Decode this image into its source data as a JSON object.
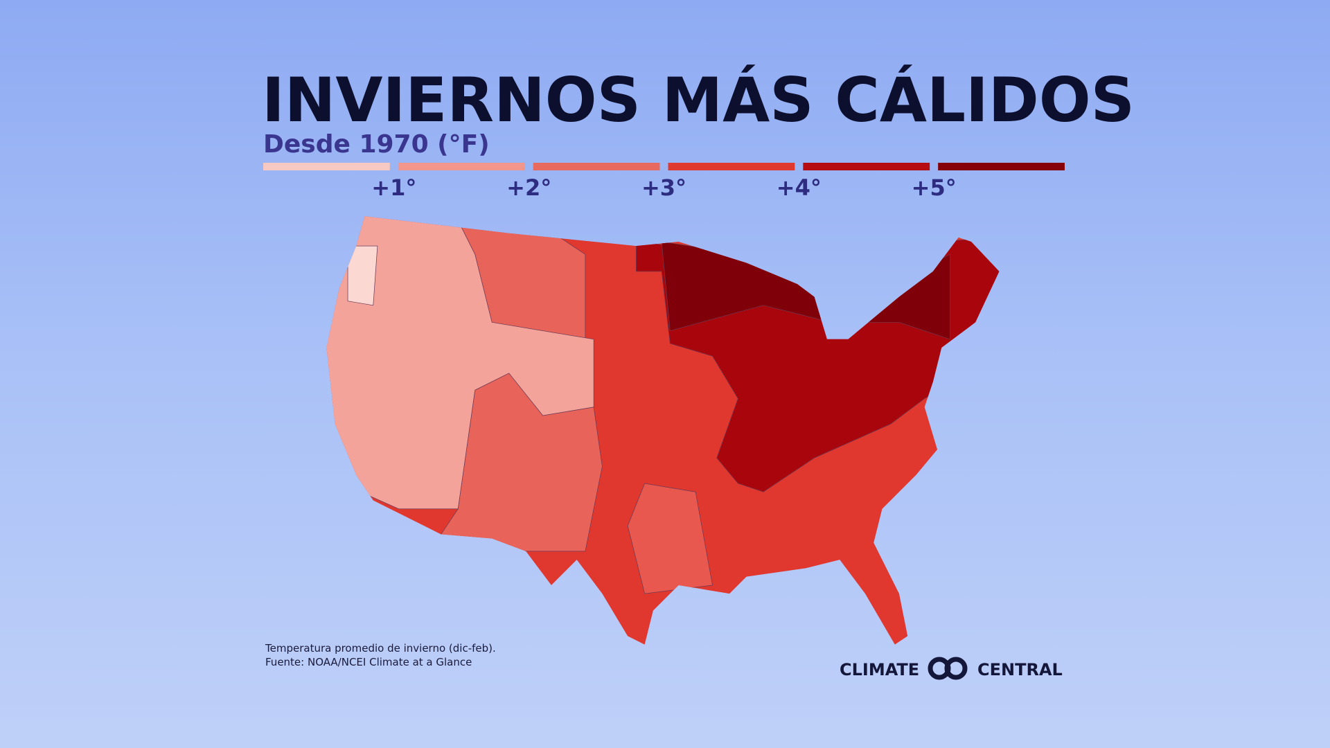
{
  "header": {
    "title": "INVIERNOS MÁS CÁLIDOS",
    "subtitle": "Desde 1970 (°F)"
  },
  "legend": {
    "colors": [
      "#f7c9c2",
      "#f2968b",
      "#e86a5e",
      "#e03a30",
      "#b50d12",
      "#850008"
    ],
    "labels": [
      "+1°",
      "+2°",
      "+3°",
      "+4°",
      "+5°"
    ]
  },
  "footer": {
    "notes": [
      "Temperatura promedio de invierno (dic-feb).",
      "Fuente: NOAA/NCEI Climate at a Glance"
    ],
    "logo": [
      "CLIMATE",
      "CENTRAL"
    ]
  }
}
